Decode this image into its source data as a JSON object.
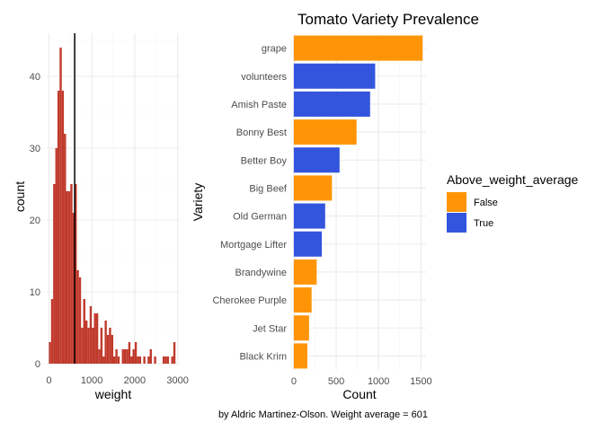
{
  "chart_data": [
    {
      "type": "bar",
      "subtype": "histogram",
      "xlabel": "weight",
      "ylabel": "count",
      "x_ticks": [
        "0",
        "1000",
        "2000",
        "3000"
      ],
      "y_ticks": [
        "0",
        "10",
        "20",
        "30",
        "40"
      ],
      "xlim": [
        -50,
        3050
      ],
      "ylim": [
        0,
        46
      ],
      "bin_width": 50,
      "bins": [
        {
          "start": 0,
          "count": 3
        },
        {
          "start": 50,
          "count": 9
        },
        {
          "start": 100,
          "count": 25
        },
        {
          "start": 150,
          "count": 30
        },
        {
          "start": 200,
          "count": 38
        },
        {
          "start": 250,
          "count": 44
        },
        {
          "start": 300,
          "count": 38
        },
        {
          "start": 350,
          "count": 32
        },
        {
          "start": 400,
          "count": 24
        },
        {
          "start": 450,
          "count": 24
        },
        {
          "start": 500,
          "count": 25
        },
        {
          "start": 550,
          "count": 21
        },
        {
          "start": 600,
          "count": 25
        },
        {
          "start": 650,
          "count": 13
        },
        {
          "start": 700,
          "count": 12
        },
        {
          "start": 750,
          "count": 5
        },
        {
          "start": 800,
          "count": 9
        },
        {
          "start": 850,
          "count": 6
        },
        {
          "start": 900,
          "count": 5
        },
        {
          "start": 950,
          "count": 8
        },
        {
          "start": 1000,
          "count": 5
        },
        {
          "start": 1050,
          "count": 7
        },
        {
          "start": 1100,
          "count": 7
        },
        {
          "start": 1150,
          "count": 2
        },
        {
          "start": 1200,
          "count": 5
        },
        {
          "start": 1250,
          "count": 1
        },
        {
          "start": 1300,
          "count": 6
        },
        {
          "start": 1350,
          "count": 4
        },
        {
          "start": 1400,
          "count": 5
        },
        {
          "start": 1450,
          "count": 4
        },
        {
          "start": 1500,
          "count": 1
        },
        {
          "start": 1550,
          "count": 2
        },
        {
          "start": 1600,
          "count": 1
        },
        {
          "start": 1650,
          "count": 0
        },
        {
          "start": 1700,
          "count": 2
        },
        {
          "start": 1750,
          "count": 2
        },
        {
          "start": 1800,
          "count": 2
        },
        {
          "start": 1850,
          "count": 3
        },
        {
          "start": 1900,
          "count": 1
        },
        {
          "start": 1950,
          "count": 2
        },
        {
          "start": 2000,
          "count": 3
        },
        {
          "start": 2050,
          "count": 1
        },
        {
          "start": 2100,
          "count": 1
        },
        {
          "start": 2150,
          "count": 0
        },
        {
          "start": 2200,
          "count": 1
        },
        {
          "start": 2250,
          "count": 0
        },
        {
          "start": 2300,
          "count": 1
        },
        {
          "start": 2350,
          "count": 2
        },
        {
          "start": 2400,
          "count": 0
        },
        {
          "start": 2450,
          "count": 1
        },
        {
          "start": 2500,
          "count": 0
        },
        {
          "start": 2550,
          "count": 0
        },
        {
          "start": 2600,
          "count": 0
        },
        {
          "start": 2650,
          "count": 1
        },
        {
          "start": 2700,
          "count": 1
        },
        {
          "start": 2750,
          "count": 1
        },
        {
          "start": 2800,
          "count": 0
        },
        {
          "start": 2850,
          "count": 1
        },
        {
          "start": 2900,
          "count": 3
        }
      ],
      "reference_line": 601,
      "bar_color": "#c0392b",
      "line_color": "#000000",
      "grid": true
    },
    {
      "type": "bar",
      "orientation": "horizontal",
      "title": "Tomato Variety Prevalence",
      "xlabel": "Count",
      "ylabel": "Variety",
      "x_ticks": [
        "0",
        "500",
        "1000",
        "1500"
      ],
      "xlim": [
        -20,
        1560
      ],
      "categories": [
        "grape",
        "volunteers",
        "Amish Paste",
        "Bonny Best",
        "Better Boy",
        "Big Beef",
        "Old German",
        "Mortgage Lifter",
        "Brandywine",
        "Cherokee Purple",
        "Jet Star",
        "Black Krim"
      ],
      "values": [
        1520,
        960,
        900,
        740,
        540,
        450,
        370,
        330,
        270,
        210,
        180,
        160
      ],
      "above_weight_average": [
        "False",
        "True",
        "True",
        "False",
        "True",
        "False",
        "True",
        "True",
        "False",
        "False",
        "False",
        "False"
      ],
      "legend": {
        "title": "Above_weight_average",
        "position": "right",
        "entries": [
          {
            "label": "False",
            "color": "#ff9506"
          },
          {
            "label": "True",
            "color": "#3355dd"
          }
        ]
      },
      "grid": true
    }
  ],
  "caption": "by Aldric Martinez-Olson. Weight average = 601"
}
